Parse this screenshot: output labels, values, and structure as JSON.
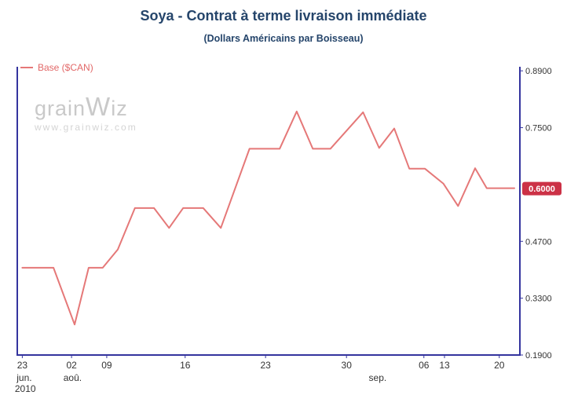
{
  "header": {
    "title": "Soya - Contrat à terme livraison immédiate",
    "subtitle": "(Dollars Américains par Boisseau)"
  },
  "legend": {
    "label": "Base ($CAN)"
  },
  "watermark": {
    "brand_prefix": "grain",
    "brand_w": "W",
    "brand_suffix": "iz",
    "url": "www.grainwiz.com"
  },
  "colors": {
    "title": "#25456b",
    "axis": "#34349e",
    "series_line": "#e57878",
    "legend_text": "#e26868",
    "tick_text": "#333333",
    "badge_bg": "#cc3146",
    "badge_text": "#ffffff",
    "watermark_text": "#c9c9c9"
  },
  "chart_data": {
    "type": "line",
    "title": "Soya - Contrat à terme livraison immédiate",
    "subtitle": "(Dollars Américains par Boisseau)",
    "ylabel": "",
    "y_min": 0.19,
    "y_max": 0.9,
    "grid": false,
    "legend_position": "top-left",
    "y_ticks": [
      {
        "value": 0.89,
        "label": "0.8900"
      },
      {
        "value": 0.75,
        "label": "0.7500"
      },
      {
        "value": 0.6,
        "label": "0.6000",
        "highlight": true
      },
      {
        "value": 0.47,
        "label": "0.4700"
      },
      {
        "value": 0.33,
        "label": "0.3300"
      },
      {
        "value": 0.19,
        "label": "0.1900"
      }
    ],
    "current_value_label": "0.6000",
    "x_ticks": [
      {
        "label": "23",
        "f": 0.01
      },
      {
        "label": "02",
        "f": 0.108
      },
      {
        "label": "09",
        "f": 0.178
      },
      {
        "label": "16",
        "f": 0.334
      },
      {
        "label": "23",
        "f": 0.494
      },
      {
        "label": "30",
        "f": 0.655
      },
      {
        "label": "06",
        "f": 0.809
      },
      {
        "label": "13",
        "f": 0.85
      },
      {
        "label": "20",
        "f": 0.959
      }
    ],
    "month_labels": [
      {
        "label": "jun.",
        "f": 0.014,
        "row": 1
      },
      {
        "label": "2010",
        "f": 0.016,
        "row": 2
      },
      {
        "label": "aoû.",
        "f": 0.11,
        "row": 1
      },
      {
        "label": "sep.",
        "f": 0.717,
        "row": 1
      }
    ],
    "series": [
      {
        "name": "Base ($CAN)",
        "points": [
          [
            0.01,
            0.405
          ],
          [
            0.072,
            0.405
          ],
          [
            0.114,
            0.265
          ],
          [
            0.142,
            0.405
          ],
          [
            0.17,
            0.405
          ],
          [
            0.2,
            0.45
          ],
          [
            0.234,
            0.552
          ],
          [
            0.272,
            0.552
          ],
          [
            0.302,
            0.503
          ],
          [
            0.33,
            0.552
          ],
          [
            0.37,
            0.552
          ],
          [
            0.405,
            0.503
          ],
          [
            0.462,
            0.698
          ],
          [
            0.522,
            0.698
          ],
          [
            0.556,
            0.79
          ],
          [
            0.588,
            0.698
          ],
          [
            0.623,
            0.698
          ],
          [
            0.688,
            0.788
          ],
          [
            0.72,
            0.7
          ],
          [
            0.75,
            0.748
          ],
          [
            0.78,
            0.649
          ],
          [
            0.811,
            0.649
          ],
          [
            0.848,
            0.612
          ],
          [
            0.877,
            0.557
          ],
          [
            0.911,
            0.65
          ],
          [
            0.934,
            0.601
          ],
          [
            0.989,
            0.601
          ]
        ]
      }
    ]
  }
}
